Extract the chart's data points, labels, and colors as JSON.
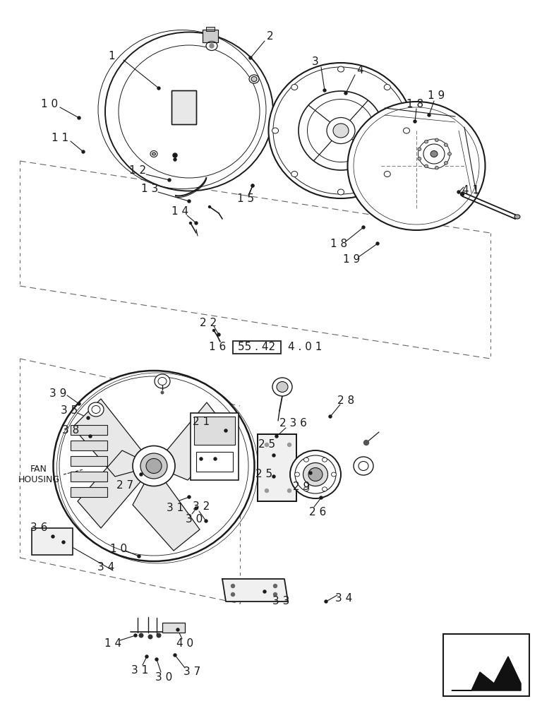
{
  "bg_color": "#ffffff",
  "lc": "#1a1a1a",
  "tc": "#1a1a1a",
  "dc": "#666666",
  "fs": 11
}
